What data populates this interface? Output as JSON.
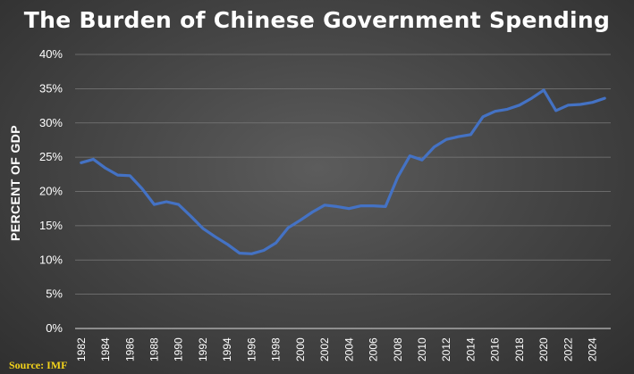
{
  "chart_data": {
    "type": "line",
    "title": "The Burden of Chinese Government Spending",
    "xlabel": "",
    "ylabel": "PERCENT OF GDP",
    "source": "Source: IMF",
    "ylim": [
      0,
      40
    ],
    "yticks": [
      "0%",
      "5%",
      "10%",
      "15%",
      "20%",
      "25%",
      "30%",
      "35%",
      "40%"
    ],
    "xticks": [
      "1982",
      "1984",
      "1986",
      "1988",
      "1990",
      "1992",
      "1994",
      "1996",
      "1998",
      "2000",
      "2002",
      "2004",
      "2006",
      "2008",
      "2010",
      "2012",
      "2014",
      "2016",
      "2018",
      "2020",
      "2022",
      "2024"
    ],
    "grid": true,
    "line_color": "#4472c4",
    "x": [
      1982,
      1983,
      1984,
      1985,
      1986,
      1987,
      1988,
      1989,
      1990,
      1991,
      1992,
      1993,
      1994,
      1995,
      1996,
      1997,
      1998,
      1999,
      2000,
      2001,
      2002,
      2003,
      2004,
      2005,
      2006,
      2007,
      2008,
      2009,
      2010,
      2011,
      2012,
      2013,
      2014,
      2015,
      2016,
      2017,
      2018,
      2019,
      2020,
      2021,
      2022,
      2023,
      2024,
      2025
    ],
    "series": [
      {
        "values": [
          24.2,
          24.7,
          23.4,
          22.4,
          22.3,
          20.4,
          18.1,
          18.5,
          18.1,
          16.4,
          14.6,
          13.4,
          12.3,
          11.0,
          10.9,
          11.4,
          12.5,
          14.7,
          15.8,
          17.0,
          18.0,
          17.8,
          17.5,
          17.9,
          17.9,
          17.8,
          22.1,
          25.2,
          24.6,
          26.5,
          27.6,
          28.0,
          28.3,
          30.9,
          31.7,
          32.0,
          32.6,
          33.6,
          34.8,
          31.8,
          32.6,
          32.7,
          33.0,
          33.6
        ]
      }
    ]
  }
}
